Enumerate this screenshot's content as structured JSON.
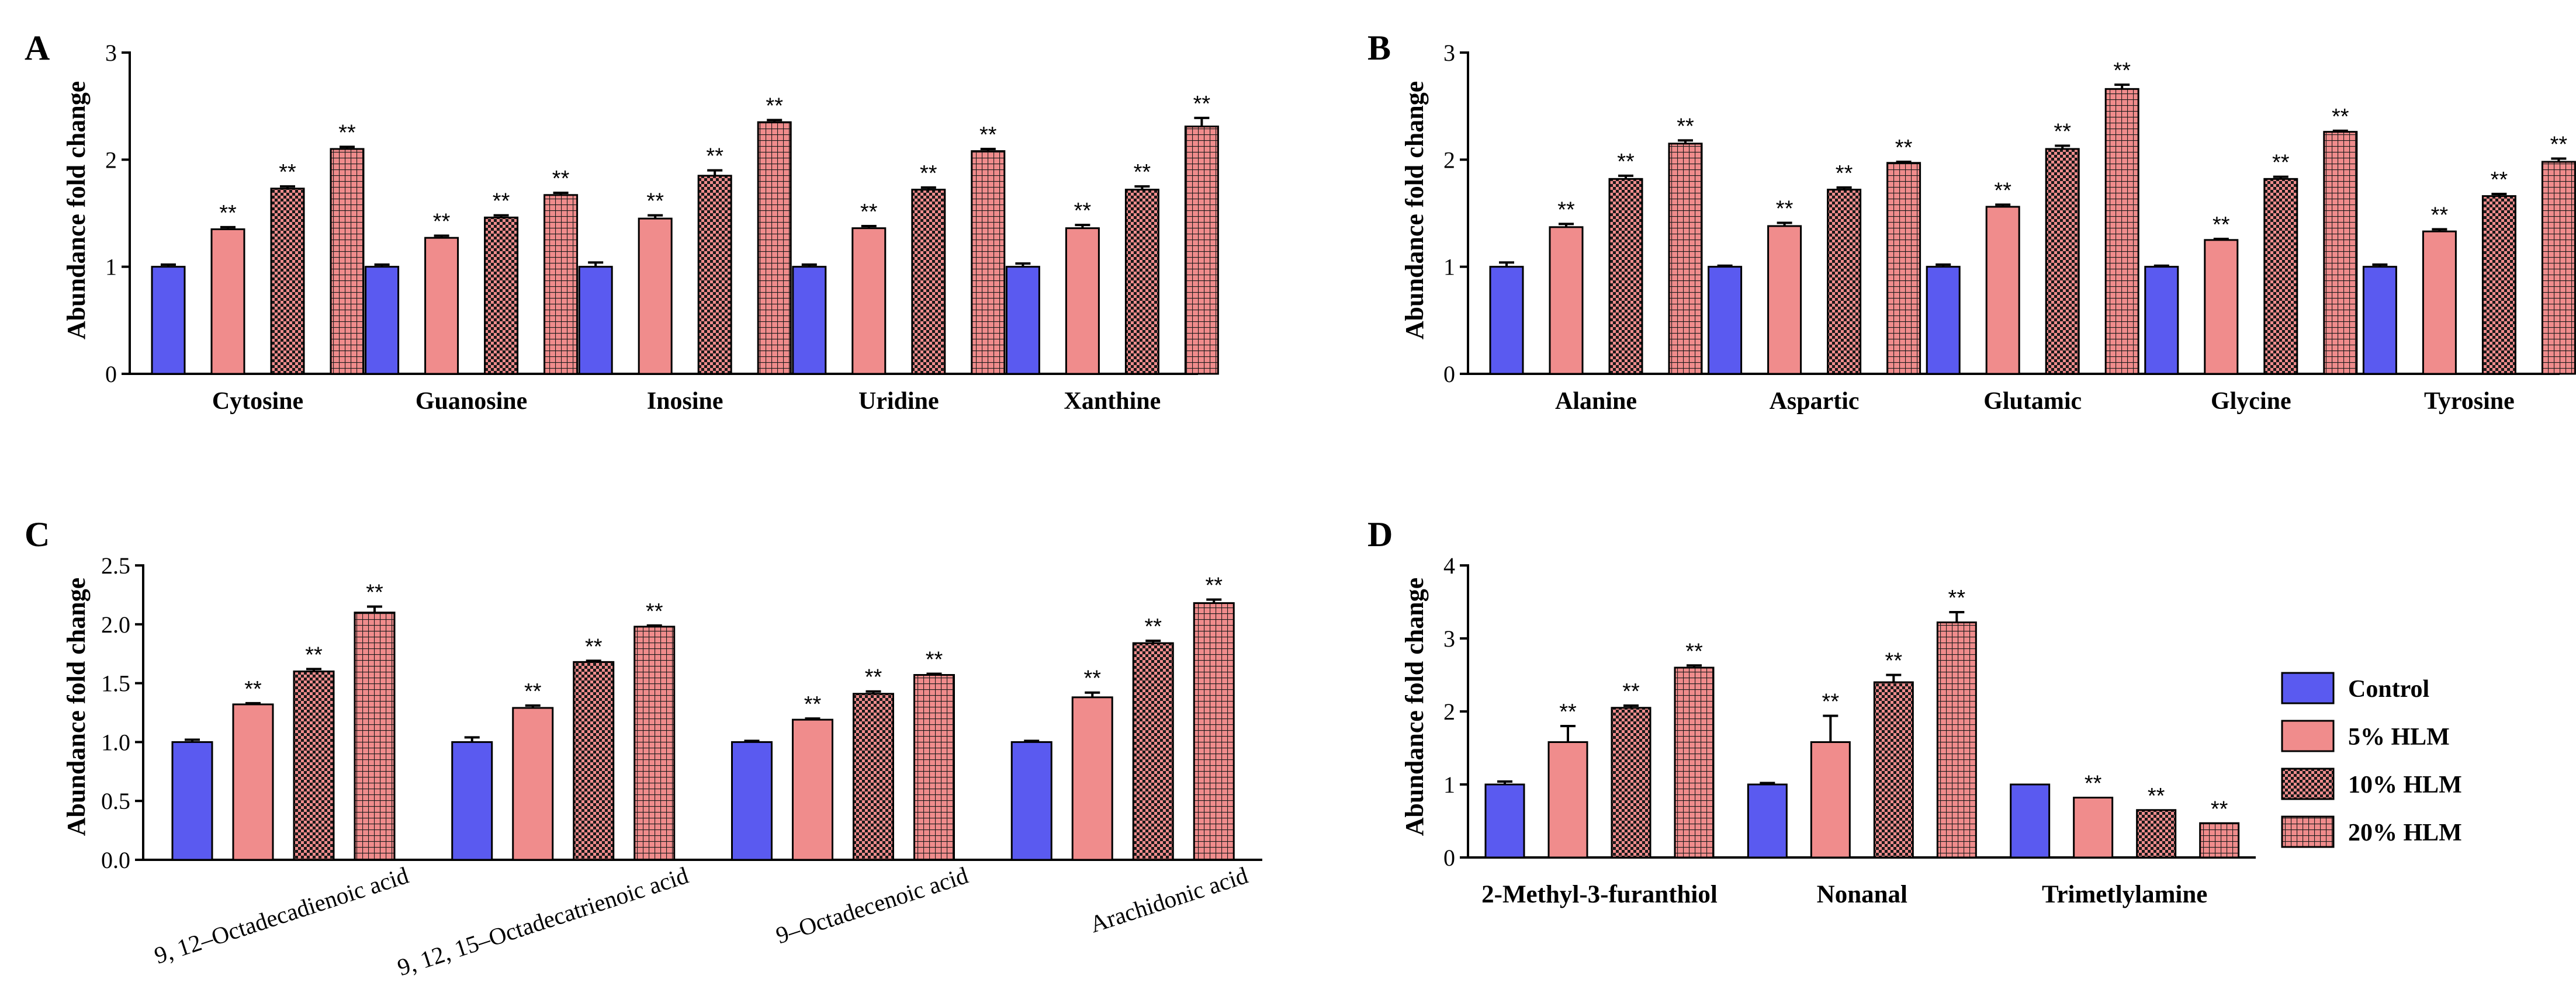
{
  "legend": {
    "entries": [
      "Control",
      "5% HLM",
      "10% HLM",
      "20% HLM"
    ]
  },
  "chart_data": [
    {
      "type": "bar",
      "panel": "A",
      "ylabel": "Abundance fold change",
      "ylim": [
        0,
        3
      ],
      "yticks": [
        "0",
        "1",
        "2",
        "3"
      ],
      "categories": [
        "Cytosine",
        "Guanosine",
        "Inosine",
        "Uridine",
        "Xanthine"
      ],
      "series": [
        {
          "name": "Control",
          "values": [
            1.0,
            1.0,
            1.0,
            1.0,
            1.0
          ],
          "errors": [
            0.02,
            0.02,
            0.04,
            0.02,
            0.03
          ],
          "sig": [
            "",
            "",
            "",
            "",
            ""
          ]
        },
        {
          "name": "5% HLM",
          "values": [
            1.35,
            1.27,
            1.45,
            1.36,
            1.36
          ],
          "errors": [
            0.02,
            0.02,
            0.03,
            0.02,
            0.03
          ],
          "sig": [
            "**",
            "**",
            "**",
            "**",
            "**"
          ]
        },
        {
          "name": "10% HLM",
          "values": [
            1.73,
            1.46,
            1.85,
            1.72,
            1.72
          ],
          "errors": [
            0.02,
            0.02,
            0.05,
            0.02,
            0.03
          ],
          "sig": [
            "**",
            "**",
            "**",
            "**",
            "**"
          ]
        },
        {
          "name": "20% HLM",
          "values": [
            2.1,
            1.67,
            2.35,
            2.08,
            2.31
          ],
          "errors": [
            0.02,
            0.02,
            0.02,
            0.02,
            0.08
          ],
          "sig": [
            "**",
            "**",
            "**",
            "**",
            "**"
          ]
        }
      ]
    },
    {
      "type": "bar",
      "panel": "B",
      "ylabel": "Abundance fold change",
      "ylim": [
        0,
        3
      ],
      "yticks": [
        "0",
        "1",
        "2",
        "3"
      ],
      "categories": [
        "Alanine",
        "Aspartic",
        "Glutamic",
        "Glycine",
        "Tyrosine"
      ],
      "series": [
        {
          "name": "Control",
          "values": [
            1.0,
            1.0,
            1.0,
            1.0,
            1.0
          ],
          "errors": [
            0.04,
            0.01,
            0.02,
            0.01,
            0.02
          ],
          "sig": [
            "",
            "",
            "",
            "",
            ""
          ]
        },
        {
          "name": "5% HLM",
          "values": [
            1.37,
            1.38,
            1.56,
            1.25,
            1.33
          ],
          "errors": [
            0.03,
            0.03,
            0.02,
            0.01,
            0.02
          ],
          "sig": [
            "**",
            "**",
            "**",
            "**",
            "**"
          ]
        },
        {
          "name": "10% HLM",
          "values": [
            1.82,
            1.72,
            2.1,
            1.82,
            1.66
          ],
          "errors": [
            0.03,
            0.02,
            0.03,
            0.02,
            0.02
          ],
          "sig": [
            "**",
            "**",
            "**",
            "**",
            "**"
          ]
        },
        {
          "name": "20% HLM",
          "values": [
            2.15,
            1.97,
            2.66,
            2.26,
            1.98
          ],
          "errors": [
            0.03,
            0.01,
            0.04,
            0.01,
            0.03
          ],
          "sig": [
            "**",
            "**",
            "**",
            "**",
            "**"
          ]
        }
      ]
    },
    {
      "type": "bar",
      "panel": "C",
      "ylabel": "Abundance fold change",
      "ylim": [
        0,
        2.5
      ],
      "yticks": [
        "0.0",
        "0.5",
        "1.0",
        "1.5",
        "2.0",
        "2.5"
      ],
      "categories": [
        "9, 12–Octadecadienoic acid",
        "9, 12, 15–Octadecatrienoic acid",
        "9–Octadecenoic acid",
        "Arachidonic acid"
      ],
      "series": [
        {
          "name": "Control",
          "values": [
            1.0,
            1.0,
            1.0,
            1.0
          ],
          "errors": [
            0.02,
            0.04,
            0.01,
            0.01
          ],
          "sig": [
            "",
            "",
            "",
            ""
          ]
        },
        {
          "name": "5% HLM",
          "values": [
            1.32,
            1.29,
            1.19,
            1.38
          ],
          "errors": [
            0.01,
            0.02,
            0.01,
            0.04
          ],
          "sig": [
            "**",
            "**",
            "**",
            "**"
          ]
        },
        {
          "name": "10% HLM",
          "values": [
            1.6,
            1.68,
            1.41,
            1.84
          ],
          "errors": [
            0.02,
            0.01,
            0.02,
            0.02
          ],
          "sig": [
            "**",
            "**",
            "**",
            "**"
          ]
        },
        {
          "name": "20% HLM",
          "values": [
            2.1,
            1.98,
            1.57,
            2.18
          ],
          "errors": [
            0.05,
            0.01,
            0.01,
            0.03
          ],
          "sig": [
            "**",
            "**",
            "**",
            "**"
          ]
        }
      ]
    },
    {
      "type": "bar",
      "panel": "D",
      "ylabel": "Abundance fold change",
      "ylim": [
        0,
        4
      ],
      "yticks": [
        "0",
        "1",
        "2",
        "3",
        "4"
      ],
      "categories": [
        "2-Methyl-3-furanthiol",
        "Nonanal",
        "Trimetlylamine"
      ],
      "series": [
        {
          "name": "Control",
          "values": [
            1.0,
            1.0,
            1.0
          ],
          "errors": [
            0.04,
            0.02,
            0.0
          ],
          "sig": [
            "",
            "",
            ""
          ]
        },
        {
          "name": "5% HLM",
          "values": [
            1.58,
            1.58,
            0.82
          ],
          "errors": [
            0.22,
            0.36,
            0.0
          ],
          "sig": [
            "**",
            "**",
            "**"
          ]
        },
        {
          "name": "10% HLM",
          "values": [
            2.05,
            2.4,
            0.65
          ],
          "errors": [
            0.03,
            0.1,
            0.0
          ],
          "sig": [
            "**",
            "**",
            "**"
          ]
        },
        {
          "name": "20% HLM",
          "values": [
            2.6,
            3.22,
            0.47
          ],
          "errors": [
            0.03,
            0.14,
            0.0
          ],
          "sig": [
            "**",
            "**",
            "**"
          ]
        }
      ]
    }
  ]
}
